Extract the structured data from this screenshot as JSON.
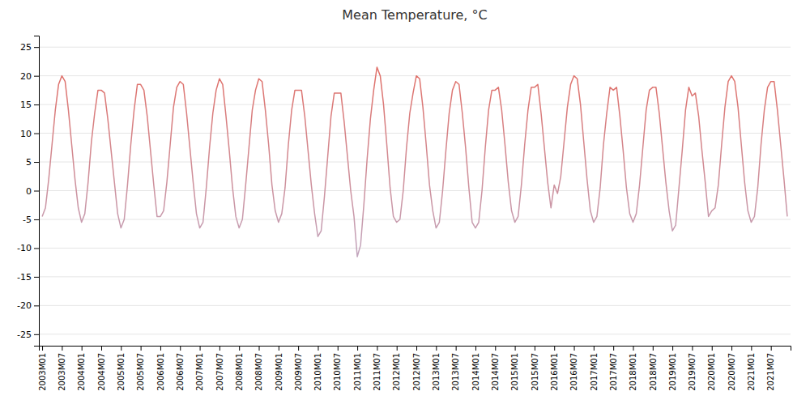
{
  "chart_data": {
    "type": "line",
    "title": "Mean Temperature, °C",
    "categories": [
      "2003M01",
      null,
      null,
      null,
      null,
      null,
      "2003M07",
      null,
      null,
      null,
      null,
      null,
      "2004M01",
      null,
      null,
      null,
      null,
      null,
      "2004M07",
      null,
      null,
      null,
      null,
      null,
      "2005M01",
      null,
      null,
      null,
      null,
      null,
      "2005M07",
      null,
      null,
      null,
      null,
      null,
      "2006M01",
      null,
      null,
      null,
      null,
      null,
      "2006M07",
      null,
      null,
      null,
      null,
      null,
      "2007M01",
      null,
      null,
      null,
      null,
      null,
      "2007M07",
      null,
      null,
      null,
      null,
      null,
      "2008M01",
      null,
      null,
      null,
      null,
      null,
      "2008M07",
      null,
      null,
      null,
      null,
      null,
      "2009M01",
      null,
      null,
      null,
      null,
      null,
      "2009M07",
      null,
      null,
      null,
      null,
      null,
      "2010M01",
      null,
      null,
      null,
      null,
      null,
      "2010M07",
      null,
      null,
      null,
      null,
      null,
      "2011M01",
      null,
      null,
      null,
      null,
      null,
      "2011M07",
      null,
      null,
      null,
      null,
      null,
      "2012M01",
      null,
      null,
      null,
      null,
      null,
      "2012M07",
      null,
      null,
      null,
      null,
      null,
      "2013M01",
      null,
      null,
      null,
      null,
      null,
      "2013M07",
      null,
      null,
      null,
      null,
      null,
      "2014M01",
      null,
      null,
      null,
      null,
      null,
      "2014M07",
      null,
      null,
      null,
      null,
      null,
      "2015M01",
      null,
      null,
      null,
      null,
      null,
      "2015M07",
      null,
      null,
      null,
      null,
      null,
      "2016M01",
      null,
      null,
      null,
      null,
      null,
      "2016M07",
      null,
      null,
      null,
      null,
      null,
      "2017M01",
      null,
      null,
      null,
      null,
      null,
      "2017M07",
      null,
      null,
      null,
      null,
      null,
      "2018M01",
      null,
      null,
      null,
      null,
      null,
      "2018M07",
      null,
      null,
      null,
      null,
      null,
      "2019M01",
      null,
      null,
      null,
      null,
      null,
      "2019M07",
      null,
      null,
      null,
      null,
      null,
      "2020M01",
      null,
      null,
      null,
      null,
      null,
      "2020M07",
      null,
      null,
      null,
      null,
      null,
      "2021M01",
      null,
      null,
      null,
      null,
      null,
      "2021M07",
      null,
      null,
      null,
      null,
      null
    ],
    "values": [
      -4.5,
      -3.0,
      2.0,
      8.0,
      14.0,
      18.5,
      20.0,
      19.0,
      14.0,
      8.0,
      2.0,
      -3.0,
      -5.5,
      -4.0,
      1.5,
      8.5,
      13.5,
      17.5,
      17.5,
      17.0,
      12.5,
      7.0,
      1.5,
      -4.0,
      -6.5,
      -5.0,
      1.0,
      8.0,
      14.0,
      18.5,
      18.5,
      17.5,
      13.0,
      7.0,
      1.0,
      -4.5,
      -4.5,
      -3.5,
      1.5,
      8.0,
      14.5,
      18.0,
      19.0,
      18.5,
      13.5,
      7.5,
      1.5,
      -4.0,
      -6.5,
      -5.5,
      0.5,
      7.5,
      13.5,
      17.5,
      19.5,
      18.5,
      13.0,
      7.0,
      0.5,
      -4.5,
      -6.5,
      -5.0,
      1.0,
      7.5,
      14.0,
      17.5,
      19.5,
      19.0,
      14.0,
      8.0,
      1.0,
      -3.5,
      -5.5,
      -4.0,
      0.5,
      8.0,
      14.0,
      17.5,
      17.5,
      17.5,
      13.0,
      7.0,
      1.0,
      -4.0,
      -8.0,
      -7.0,
      -1.0,
      6.0,
      13.0,
      17.0,
      17.0,
      17.0,
      12.0,
      6.0,
      0.0,
      -4.5,
      -11.5,
      -9.5,
      -2.5,
      5.5,
      12.5,
      17.5,
      21.5,
      20.0,
      15.0,
      8.0,
      0.5,
      -4.5,
      -5.5,
      -5.0,
      0.0,
      7.5,
      13.5,
      17.0,
      20.0,
      19.5,
      14.5,
      8.0,
      1.0,
      -3.5,
      -6.5,
      -5.5,
      0.0,
      7.0,
      13.5,
      17.5,
      19.0,
      18.5,
      13.5,
      7.5,
      0.5,
      -5.5,
      -6.5,
      -5.5,
      0.0,
      7.5,
      14.0,
      17.5,
      17.5,
      18.0,
      14.0,
      8.0,
      1.5,
      -3.5,
      -5.5,
      -4.5,
      1.0,
      8.0,
      14.0,
      18.0,
      18.0,
      18.5,
      13.5,
      7.5,
      1.5,
      -3.0,
      1.0,
      -0.5,
      2.5,
      8.5,
      14.5,
      18.5,
      20.0,
      19.5,
      15.0,
      8.5,
      2.0,
      -3.5,
      -5.5,
      -4.5,
      0.5,
      8.0,
      13.5,
      18.0,
      17.5,
      18.0,
      13.0,
      7.0,
      0.5,
      -4.0,
      -5.5,
      -4.0,
      1.0,
      7.5,
      14.0,
      17.5,
      18.0,
      18.0,
      13.5,
      7.5,
      1.5,
      -3.5,
      -7.0,
      -6.0,
      0.5,
      7.0,
      14.0,
      18.0,
      16.5,
      17.0,
      13.0,
      7.0,
      1.5,
      -4.5,
      -3.5,
      -3.0,
      1.0,
      8.0,
      14.5,
      19.0,
      20.0,
      19.0,
      14.5,
      8.0,
      1.5,
      -3.5,
      -5.5,
      -4.5,
      0.5,
      8.0,
      14.0,
      18.0,
      19.0,
      19.0,
      14.0,
      8.0,
      2.0,
      -4.5
    ],
    "colors": [
      "#b3bfe6",
      "#e66659"
    ],
    "ylim": [
      -27,
      27
    ],
    "yticks": [
      -25,
      -20,
      -15,
      -10,
      -5,
      0,
      5,
      10,
      15,
      20,
      25
    ],
    "grid": true
  }
}
